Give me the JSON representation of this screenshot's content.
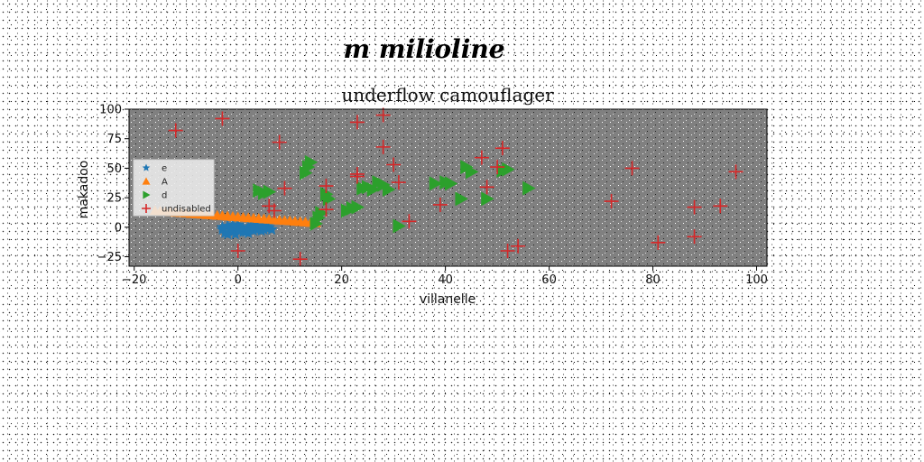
{
  "chart_data": {
    "type": "scatter",
    "suptitle": "m milioline",
    "title": "underflow camouflager",
    "xlabel": "villanelle",
    "ylabel": "makadoo",
    "xlim": [
      -21,
      102
    ],
    "ylim": [
      -33,
      100
    ],
    "xticks": [
      -20,
      0,
      20,
      40,
      60,
      80,
      100
    ],
    "yticks": [
      -25,
      0,
      25,
      50,
      75,
      100
    ],
    "xtick_labels": [
      "−20",
      "0",
      "20",
      "40",
      "60",
      "80",
      "100"
    ],
    "ytick_labels": [
      "−25",
      "0",
      "25",
      "50",
      "75",
      "100"
    ],
    "legend": {
      "placement": "center-left",
      "entries": [
        "e",
        "A",
        "d",
        "undisabled"
      ]
    },
    "background_color": "#808080",
    "series": [
      {
        "name": "e",
        "marker": "star",
        "color": "#1f77b4",
        "x": [
          -3,
          -2,
          -1,
          0,
          1,
          2,
          3,
          4,
          5,
          6,
          -2.5,
          -1.5,
          -0.5,
          0.5,
          1.5,
          2.5,
          3.5,
          4.5,
          5.5,
          -3,
          -1,
          1,
          3,
          5,
          6.5,
          -2,
          0,
          2,
          4
        ],
        "y": [
          -2,
          1,
          -4,
          2,
          -1,
          0,
          -3,
          1,
          -2,
          0,
          -5,
          -2,
          -6,
          -1,
          -4,
          1,
          -2,
          -3,
          -1,
          0,
          2,
          -4,
          0,
          1,
          -2,
          -6,
          -3,
          -5,
          2
        ]
      },
      {
        "name": "A",
        "marker": "triangle-up",
        "color": "#ff7f0e",
        "x": [
          -16,
          -15,
          -14,
          -13,
          -12,
          -11,
          -10,
          -9,
          -8,
          -7,
          -6,
          -5,
          -4,
          -3,
          -2,
          -1,
          0,
          1,
          2,
          3,
          4,
          5,
          6,
          7,
          8,
          9,
          10,
          11,
          12,
          13,
          14,
          15
        ],
        "y": [
          14,
          13.6,
          13.3,
          13,
          12.6,
          12.3,
          12,
          11.6,
          11.3,
          11,
          10.6,
          10.3,
          10,
          9.7,
          9.4,
          9,
          8.7,
          8.4,
          8,
          7.7,
          7.4,
          7,
          6.7,
          6.4,
          6,
          5.7,
          5.4,
          5,
          4.7,
          4.4,
          4,
          3.7
        ]
      },
      {
        "name": "d",
        "marker": "triangle-right",
        "color": "#2ca02c",
        "x": [
          4,
          5,
          6,
          13,
          13.5,
          14,
          15,
          15.5,
          16,
          17,
          17.5,
          21,
          22,
          23,
          24,
          25,
          26,
          27,
          28,
          29,
          31,
          38,
          40,
          41,
          43,
          44,
          45,
          48,
          51,
          52,
          56
        ],
        "y": [
          31,
          29,
          30,
          46,
          51,
          55,
          3,
          8,
          12,
          28,
          24,
          14,
          16,
          17,
          33,
          34,
          32,
          38,
          36,
          32,
          1,
          37,
          38,
          37,
          24,
          51,
          47,
          24,
          48,
          49,
          33
        ]
      },
      {
        "name": "undisabled",
        "marker": "plus",
        "color": "#d62728",
        "x": [
          -12,
          -3,
          0,
          6,
          7,
          8,
          9,
          12,
          17,
          17,
          23,
          23,
          23,
          28,
          28,
          30,
          31,
          33,
          39,
          47,
          48,
          50,
          51,
          52,
          54,
          72,
          76,
          81,
          88,
          88,
          93,
          96
        ],
        "y": [
          82,
          92,
          -20,
          18,
          14,
          72,
          33,
          -27,
          35,
          15,
          89,
          45,
          43,
          95,
          68,
          53,
          38,
          5,
          19,
          59,
          34,
          51,
          67,
          -20,
          -16,
          22,
          50,
          -13,
          17,
          -8,
          18,
          47
        ]
      }
    ]
  }
}
